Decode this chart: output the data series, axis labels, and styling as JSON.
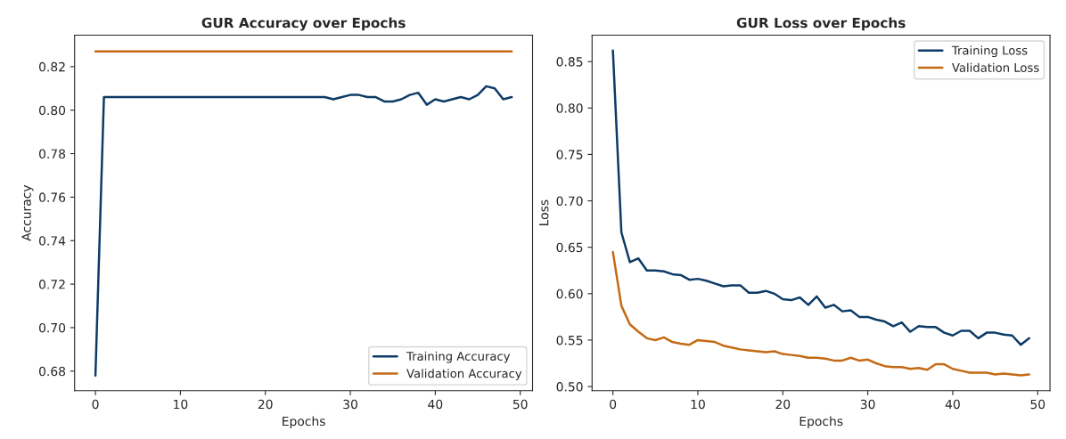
{
  "chart_data": [
    {
      "type": "line",
      "title": "GUR Accuracy over Epochs",
      "xlabel": "Epochs",
      "ylabel": "Accuracy",
      "x": [
        0,
        1,
        2,
        3,
        4,
        5,
        6,
        7,
        8,
        9,
        10,
        11,
        12,
        13,
        14,
        15,
        16,
        17,
        18,
        19,
        20,
        21,
        22,
        23,
        24,
        25,
        26,
        27,
        28,
        29,
        30,
        31,
        32,
        33,
        34,
        35,
        36,
        37,
        38,
        39,
        40,
        41,
        42,
        43,
        44,
        45,
        46,
        47,
        48,
        49
      ],
      "series": [
        {
          "name": "Training Accuracy",
          "color": "#0d3b66",
          "values": [
            0.678,
            0.806,
            0.806,
            0.806,
            0.806,
            0.806,
            0.806,
            0.806,
            0.806,
            0.806,
            0.806,
            0.806,
            0.806,
            0.806,
            0.806,
            0.806,
            0.806,
            0.806,
            0.806,
            0.806,
            0.806,
            0.806,
            0.806,
            0.806,
            0.806,
            0.806,
            0.806,
            0.806,
            0.805,
            0.806,
            0.807,
            0.807,
            0.806,
            0.806,
            0.804,
            0.804,
            0.805,
            0.807,
            0.808,
            0.8025,
            0.805,
            0.804,
            0.805,
            0.806,
            0.805,
            0.807,
            0.811,
            0.81,
            0.805,
            0.806
          ]
        },
        {
          "name": "Validation Accuracy",
          "color": "#c46a14",
          "values": [
            0.827,
            0.827,
            0.827,
            0.827,
            0.827,
            0.827,
            0.827,
            0.827,
            0.827,
            0.827,
            0.827,
            0.827,
            0.827,
            0.827,
            0.827,
            0.827,
            0.827,
            0.827,
            0.827,
            0.827,
            0.827,
            0.827,
            0.827,
            0.827,
            0.827,
            0.827,
            0.827,
            0.827,
            0.827,
            0.827,
            0.827,
            0.827,
            0.827,
            0.827,
            0.827,
            0.827,
            0.827,
            0.827,
            0.827,
            0.827,
            0.827,
            0.827,
            0.827,
            0.827,
            0.827,
            0.827,
            0.827,
            0.827,
            0.827,
            0.827
          ]
        }
      ],
      "xlim": [
        -2.45,
        51.45
      ],
      "xticks": [
        0,
        10,
        20,
        30,
        40,
        50
      ],
      "ylim": [
        0.671,
        0.8345
      ],
      "yticks": [
        0.68,
        {
          "value": 0.7,
          "label": "0.70"
        },
        0.72,
        0.74,
        0.76,
        0.78,
        {
          "value": 0.8,
          "label": "0.80"
        },
        0.82
      ],
      "legend": "lower right",
      "grid": false
    },
    {
      "type": "line",
      "title": "GUR Loss over Epochs",
      "xlabel": "Epochs",
      "ylabel": "Loss",
      "x": [
        0,
        1,
        2,
        3,
        4,
        5,
        6,
        7,
        8,
        9,
        10,
        11,
        12,
        13,
        14,
        15,
        16,
        17,
        18,
        19,
        20,
        21,
        22,
        23,
        24,
        25,
        26,
        27,
        28,
        29,
        30,
        31,
        32,
        33,
        34,
        35,
        36,
        37,
        38,
        39,
        40,
        41,
        42,
        43,
        44,
        45,
        46,
        47,
        48,
        49
      ],
      "series": [
        {
          "name": "Training Loss",
          "color": "#0d3b66",
          "values": [
            0.862,
            0.666,
            0.634,
            0.638,
            0.625,
            0.625,
            0.624,
            0.621,
            0.62,
            0.615,
            0.616,
            0.614,
            0.611,
            0.608,
            0.609,
            0.609,
            0.601,
            0.601,
            0.603,
            0.6,
            0.594,
            0.593,
            0.596,
            0.588,
            0.597,
            0.585,
            0.588,
            0.581,
            0.582,
            0.575,
            0.575,
            0.572,
            0.57,
            0.565,
            0.569,
            0.559,
            0.565,
            0.564,
            0.564,
            0.558,
            0.555,
            0.56,
            0.56,
            0.552,
            0.558,
            0.558,
            0.556,
            0.555,
            0.545,
            0.552
          ]
        },
        {
          "name": "Validation Loss",
          "color": "#c46a14",
          "values": [
            0.645,
            0.587,
            0.567,
            0.559,
            0.552,
            0.55,
            0.553,
            0.548,
            0.546,
            0.545,
            0.55,
            0.549,
            0.548,
            0.544,
            0.542,
            0.54,
            0.539,
            0.538,
            0.537,
            0.538,
            0.535,
            0.534,
            0.533,
            0.531,
            0.531,
            0.53,
            0.528,
            0.528,
            0.531,
            0.528,
            0.529,
            0.525,
            0.522,
            0.521,
            0.521,
            0.519,
            0.52,
            0.518,
            0.524,
            0.524,
            0.519,
            0.517,
            0.515,
            0.515,
            0.515,
            0.513,
            0.514,
            0.513,
            0.512,
            0.513
          ]
        }
      ],
      "xlim": [
        -2.45,
        51.45
      ],
      "xticks": [
        0,
        10,
        20,
        30,
        40,
        50
      ],
      "ylim": [
        0.4955,
        0.8785
      ],
      "yticks": [
        {
          "value": 0.5,
          "label": "0.50"
        },
        0.55,
        {
          "value": 0.6,
          "label": "0.60"
        },
        0.65,
        {
          "value": 0.7,
          "label": "0.70"
        },
        0.75,
        {
          "value": 0.8,
          "label": "0.80"
        },
        0.85
      ],
      "legend": "upper right",
      "grid": false
    }
  ]
}
